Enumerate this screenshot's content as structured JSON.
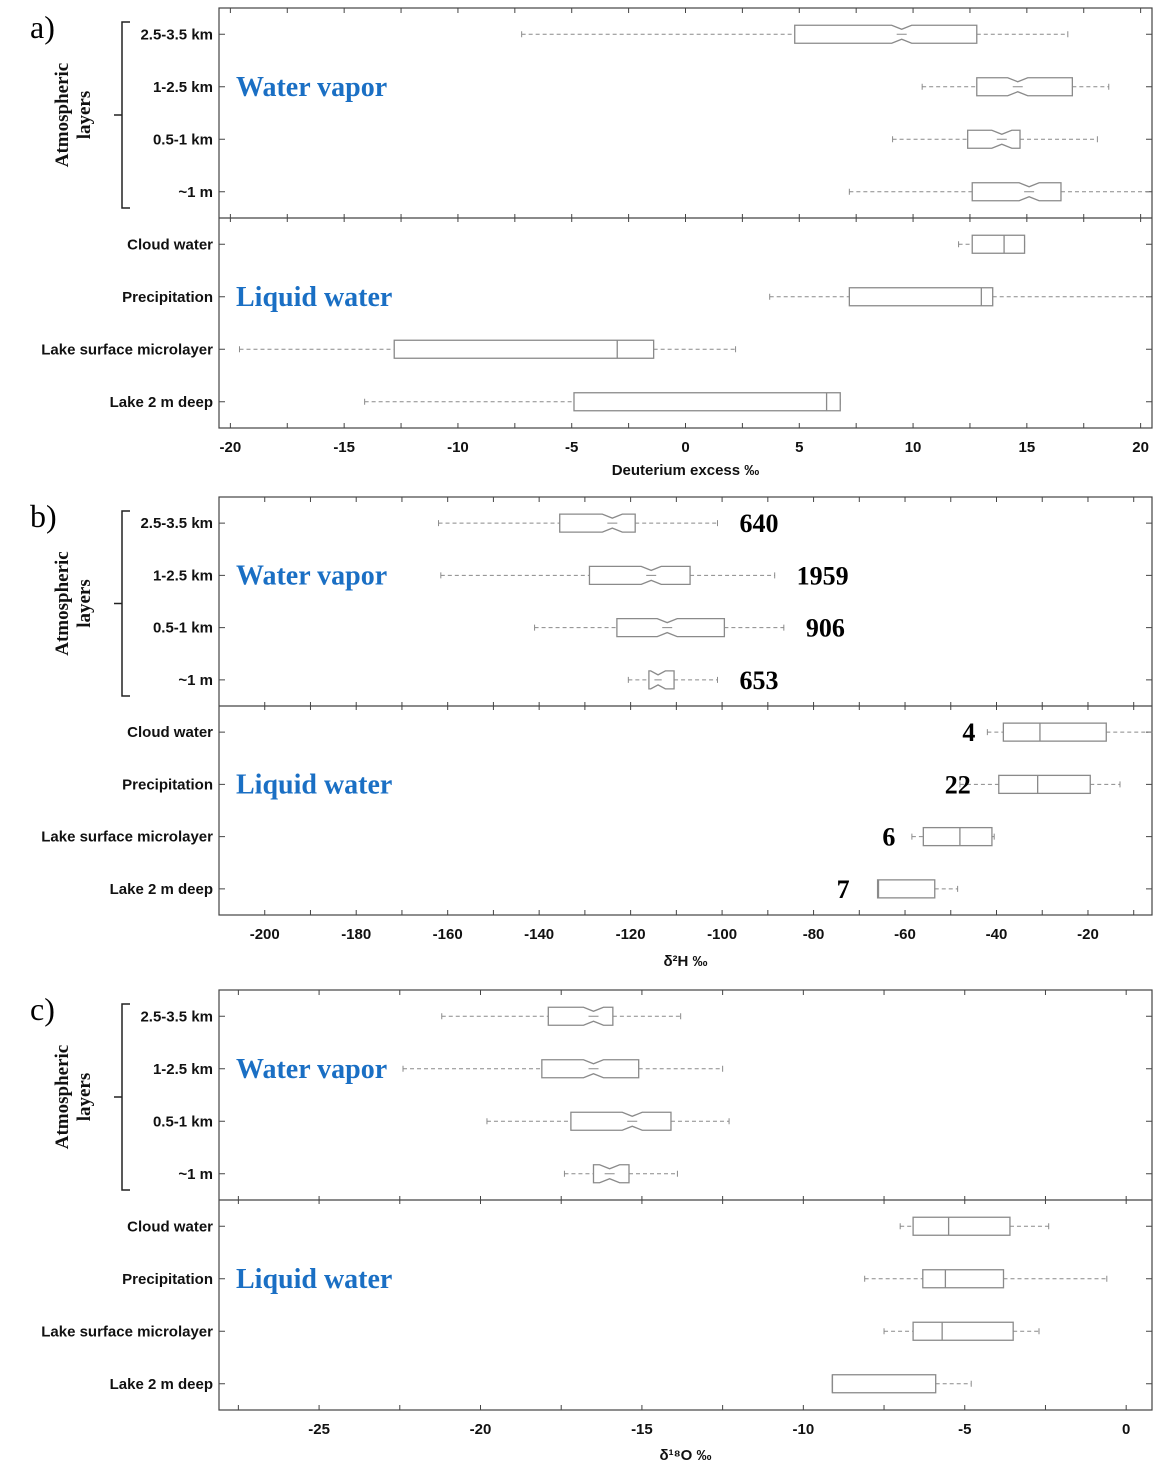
{
  "colors": {
    "group_label": "#1a6fc4",
    "box": "#8a8a8a",
    "whisker": "#8a8a8a",
    "axis": "#444444"
  },
  "chart_data": [
    {
      "type": "boxplot",
      "panel_label": "a)",
      "xlabel": "Deuterium excess ‰",
      "xlim": [
        -20.5,
        20.5
      ],
      "xticks": [
        -20,
        -15,
        -10,
        -5,
        0,
        5,
        10,
        15,
        20
      ],
      "tick_labels": [
        "-20",
        "-15",
        "-10",
        "-5",
        "0",
        "5",
        "10",
        "15",
        "20"
      ],
      "ylabel": "Atmospheric layers",
      "group_labels": [
        "Water vapor",
        "Liquid water"
      ],
      "categories": [
        {
          "name": "2.5-3.5 km",
          "group": "Water vapor",
          "min": -7.2,
          "q1": 4.8,
          "median": 9.5,
          "q3": 12.8,
          "max": 16.8,
          "notched": true
        },
        {
          "name": "1-2.5 km",
          "group": "Water vapor",
          "min": 10.4,
          "q1": 12.8,
          "median": 14.6,
          "q3": 17.0,
          "max": 18.6,
          "notched": true
        },
        {
          "name": "0.5-1 km",
          "group": "Water vapor",
          "min": 9.1,
          "q1": 12.4,
          "median": 13.9,
          "q3": 14.7,
          "max": 18.1,
          "notched": true
        },
        {
          "name": "~1 m",
          "group": "Water vapor",
          "min": 7.2,
          "q1": 12.6,
          "median": 15.1,
          "q3": 16.5,
          "max": 20.6,
          "notched": true
        },
        {
          "name": "Cloud water",
          "group": "Liquid water",
          "min": 12.0,
          "q1": 12.6,
          "median": 14.0,
          "q3": 14.9,
          "max": 14.9,
          "notched": false
        },
        {
          "name": "Precipitation",
          "group": "Liquid water",
          "min": 3.7,
          "q1": 7.2,
          "median": 13.0,
          "q3": 13.5,
          "max": 20.9,
          "notched": false
        },
        {
          "name": "Lake surface microlayer",
          "group": "Liquid water",
          "min": -19.6,
          "q1": -12.8,
          "median": -3.0,
          "q3": -1.4,
          "max": 2.2,
          "notched": false
        },
        {
          "name": "Lake 2 m deep",
          "group": "Liquid water",
          "min": -14.1,
          "q1": -4.9,
          "median": 6.2,
          "q3": 6.8,
          "max": 6.8,
          "notched": false
        }
      ],
      "counts": []
    },
    {
      "type": "boxplot",
      "panel_label": "b)",
      "xlabel": "δ²H ‰",
      "xlim": [
        -210,
        -6
      ],
      "xticks": [
        -200,
        -180,
        -160,
        -140,
        -120,
        -100,
        -80,
        -60,
        -40,
        -20
      ],
      "tick_labels": [
        "-200",
        "-180",
        "-160",
        "-140",
        "-120",
        "-100",
        "-80",
        "-60",
        "-40",
        "-20"
      ],
      "ylabel": "Atmospheric layers",
      "group_labels": [
        "Water vapor",
        "Liquid water"
      ],
      "categories": [
        {
          "name": "2.5-3.5 km",
          "group": "Water vapor",
          "min": -162.0,
          "q1": -135.5,
          "median": -124.0,
          "q3": -119.0,
          "max": -101.0,
          "notched": true
        },
        {
          "name": "1-2.5 km",
          "group": "Water vapor",
          "min": -161.5,
          "q1": -129.0,
          "median": -115.5,
          "q3": -107.0,
          "max": -88.5,
          "notched": true
        },
        {
          "name": "0.5-1 km",
          "group": "Water vapor",
          "min": -141.0,
          "q1": -123.0,
          "median": -112.0,
          "q3": -99.5,
          "max": -86.5,
          "notched": true
        },
        {
          "name": "~1 m",
          "group": "Water vapor",
          "min": -120.5,
          "q1": -116.0,
          "median": -114.0,
          "q3": -110.5,
          "max": -101.0,
          "notched": true
        },
        {
          "name": "Cloud water",
          "group": "Liquid water",
          "min": -42.0,
          "q1": -38.5,
          "median": -30.5,
          "q3": -16.0,
          "max": -5.5,
          "notched": false
        },
        {
          "name": "Precipitation",
          "group": "Liquid water",
          "min": -48.0,
          "q1": -39.5,
          "median": -31.0,
          "q3": -19.5,
          "max": -13.0,
          "notched": false
        },
        {
          "name": "Lake surface microlayer",
          "group": "Liquid water",
          "min": -58.5,
          "q1": -56.0,
          "median": -48.0,
          "q3": -41.0,
          "max": -40.5,
          "notched": false
        },
        {
          "name": "Lake 2 m deep",
          "group": "Liquid water",
          "min": -66.0,
          "q1": -66.0,
          "median": -65.8,
          "q3": -53.5,
          "max": -48.5,
          "notched": false
        }
      ],
      "counts": [
        {
          "category": "2.5-3.5 km",
          "text": "640"
        },
        {
          "category": "1-2.5 km",
          "text": "1959"
        },
        {
          "category": "0.5-1 km",
          "text": "906"
        },
        {
          "category": "~1 m",
          "text": "653"
        },
        {
          "category": "Cloud water",
          "text": "4"
        },
        {
          "category": "Precipitation",
          "text": "22"
        },
        {
          "category": "Lake surface microlayer",
          "text": "6"
        },
        {
          "category": "Lake 2 m deep",
          "text": "7"
        }
      ]
    },
    {
      "type": "boxplot",
      "panel_label": "c)",
      "xlabel": "δ¹⁸O ‰",
      "xlim": [
        -28.1,
        0.8
      ],
      "xticks": [
        -25,
        -20,
        -15,
        -10,
        -5,
        0
      ],
      "tick_labels": [
        "-25",
        "-20",
        "-15",
        "-10",
        "-5",
        "0"
      ],
      "ylabel": "Atmospheric layers",
      "group_labels": [
        "Water vapor",
        "Liquid water"
      ],
      "categories": [
        {
          "name": "2.5-3.5 km",
          "group": "Water vapor",
          "min": -21.2,
          "q1": -17.9,
          "median": -16.5,
          "q3": -15.9,
          "max": -13.8,
          "notched": true
        },
        {
          "name": "1-2.5 km",
          "group": "Water vapor",
          "min": -22.4,
          "q1": -18.1,
          "median": -16.5,
          "q3": -15.1,
          "max": -12.5,
          "notched": true
        },
        {
          "name": "0.5-1 km",
          "group": "Water vapor",
          "min": -19.8,
          "q1": -17.2,
          "median": -15.3,
          "q3": -14.1,
          "max": -12.3,
          "notched": true
        },
        {
          "name": "~1 m",
          "group": "Water vapor",
          "min": -17.4,
          "q1": -16.5,
          "median": -16.0,
          "q3": -15.4,
          "max": -13.9,
          "notched": true
        },
        {
          "name": "Cloud water",
          "group": "Liquid water",
          "min": -7.0,
          "q1": -6.6,
          "median": -5.5,
          "q3": -3.6,
          "max": -2.4,
          "notched": false
        },
        {
          "name": "Precipitation",
          "group": "Liquid water",
          "min": -8.1,
          "q1": -6.3,
          "median": -5.6,
          "q3": -3.8,
          "max": -0.6,
          "notched": false
        },
        {
          "name": "Lake surface microlayer",
          "group": "Liquid water",
          "min": -7.5,
          "q1": -6.6,
          "median": -5.7,
          "q3": -3.5,
          "max": -2.7,
          "notched": false
        },
        {
          "name": "Lake 2 m deep",
          "group": "Liquid water",
          "min": -9.1,
          "q1": -9.1,
          "median": -9.1,
          "q3": -5.9,
          "max": -4.8,
          "notched": false
        }
      ],
      "counts": []
    }
  ]
}
